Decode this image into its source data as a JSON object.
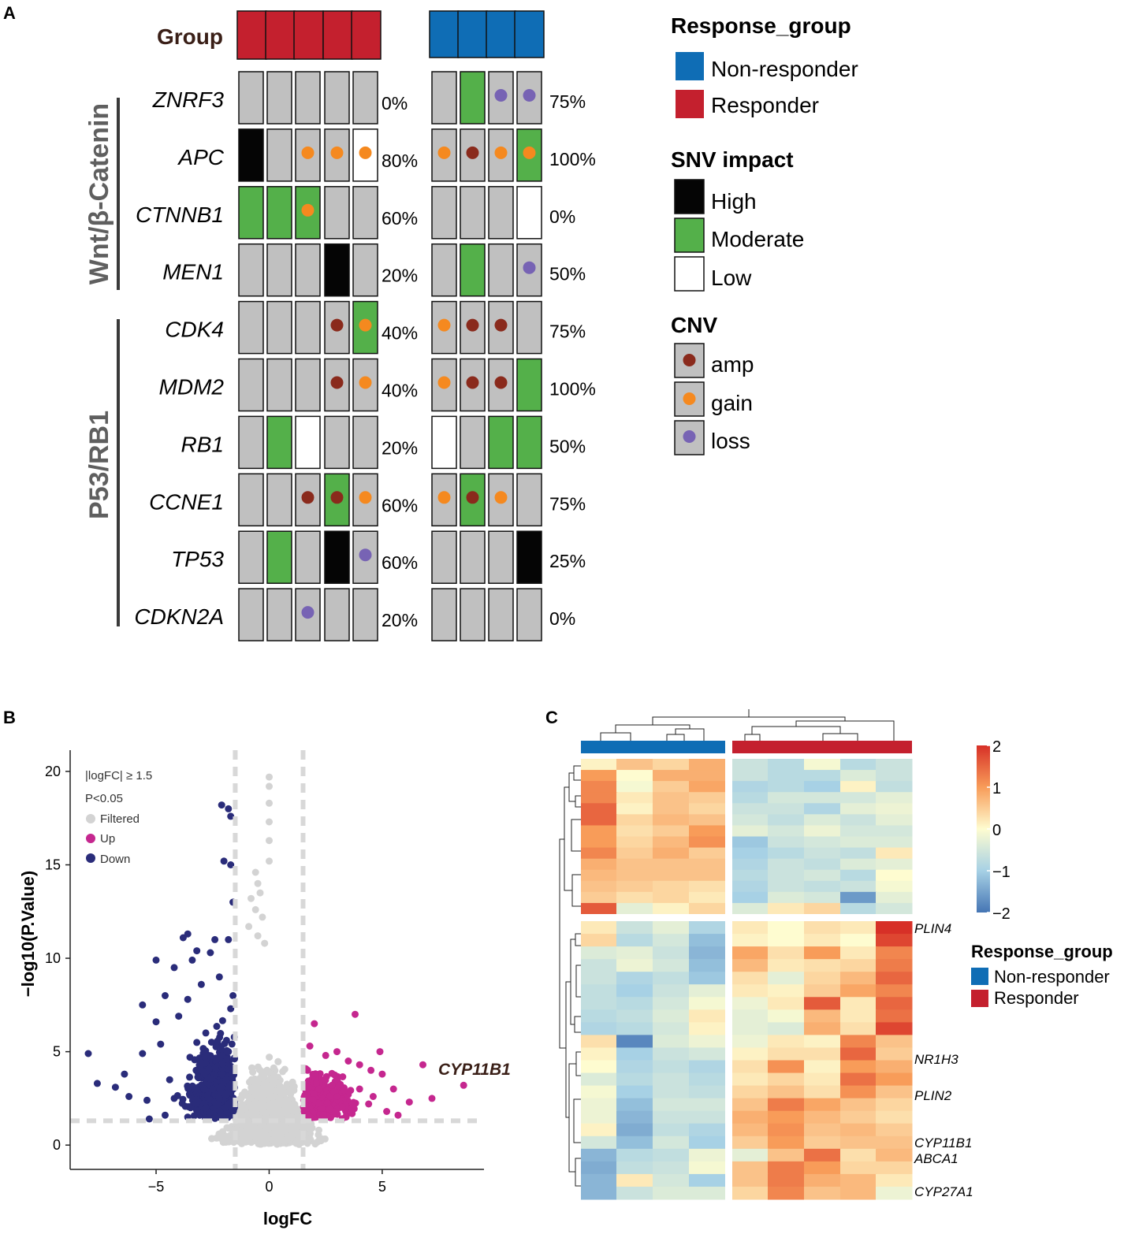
{
  "colors": {
    "responder": "#c4202e",
    "non_responder": "#0f6db5",
    "high": "#050505",
    "moderate": "#54b04a",
    "low": "#ffffff",
    "none": "#c0c0c0",
    "amp": "#8a2a1c",
    "gain": "#f5891f",
    "loss": "#7763b4",
    "up": "#c5278f",
    "down": "#2a2c7a",
    "filtered": "#d3d3d3"
  },
  "panel_a": {
    "label": "A",
    "group_label": "Group",
    "pathways": [
      {
        "name": "Wnt/β-Catenin",
        "genes": [
          "ZNRF3",
          "APC",
          "CTNNB1",
          "MEN1"
        ]
      },
      {
        "name": "P53/RB1",
        "genes": [
          "CDK4",
          "MDM2",
          "RB1",
          "CCNE1",
          "TP53",
          "CDKN2A"
        ]
      }
    ],
    "genes": [
      {
        "name": "ZNRF3",
        "resp_pct": "0%",
        "nonresp_pct": "75%",
        "resp": [
          [
            "N",
            ""
          ],
          [
            "N",
            ""
          ],
          [
            "N",
            ""
          ],
          [
            "N",
            ""
          ],
          [
            "N",
            ""
          ]
        ],
        "nonresp": [
          [
            "N",
            ""
          ],
          [
            "M",
            ""
          ],
          [
            "N",
            "loss"
          ],
          [
            "N",
            "loss"
          ]
        ]
      },
      {
        "name": "APC",
        "resp_pct": "80%",
        "nonresp_pct": "100%",
        "resp": [
          [
            "H",
            ""
          ],
          [
            "N",
            ""
          ],
          [
            "N",
            "gain"
          ],
          [
            "N",
            "gain"
          ],
          [
            "L",
            "gain"
          ]
        ],
        "nonresp": [
          [
            "N",
            "gain"
          ],
          [
            "N",
            "amp"
          ],
          [
            "N",
            "gain"
          ],
          [
            "M",
            "gain"
          ]
        ]
      },
      {
        "name": "CTNNB1",
        "resp_pct": "60%",
        "nonresp_pct": "0%",
        "resp": [
          [
            "M",
            ""
          ],
          [
            "M",
            ""
          ],
          [
            "M",
            "gain"
          ],
          [
            "N",
            ""
          ],
          [
            "N",
            ""
          ]
        ],
        "nonresp": [
          [
            "N",
            ""
          ],
          [
            "N",
            ""
          ],
          [
            "N",
            ""
          ],
          [
            "L",
            ""
          ]
        ]
      },
      {
        "name": "MEN1",
        "resp_pct": "20%",
        "nonresp_pct": "50%",
        "resp": [
          [
            "N",
            ""
          ],
          [
            "N",
            ""
          ],
          [
            "N",
            ""
          ],
          [
            "H",
            ""
          ],
          [
            "N",
            ""
          ]
        ],
        "nonresp": [
          [
            "N",
            ""
          ],
          [
            "M",
            ""
          ],
          [
            "N",
            ""
          ],
          [
            "N",
            "loss"
          ]
        ]
      },
      {
        "name": "CDK4",
        "resp_pct": "40%",
        "nonresp_pct": "75%",
        "resp": [
          [
            "N",
            ""
          ],
          [
            "N",
            ""
          ],
          [
            "N",
            ""
          ],
          [
            "N",
            "amp"
          ],
          [
            "M",
            "gain"
          ]
        ],
        "nonresp": [
          [
            "N",
            "gain"
          ],
          [
            "N",
            "amp"
          ],
          [
            "N",
            "amp"
          ],
          [
            "N",
            ""
          ]
        ]
      },
      {
        "name": "MDM2",
        "resp_pct": "40%",
        "nonresp_pct": "100%",
        "resp": [
          [
            "N",
            ""
          ],
          [
            "N",
            ""
          ],
          [
            "N",
            ""
          ],
          [
            "N",
            "amp"
          ],
          [
            "N",
            "gain"
          ]
        ],
        "nonresp": [
          [
            "N",
            "gain"
          ],
          [
            "N",
            "amp"
          ],
          [
            "N",
            "amp"
          ],
          [
            "M",
            ""
          ]
        ]
      },
      {
        "name": "RB1",
        "resp_pct": "20%",
        "nonresp_pct": "50%",
        "resp": [
          [
            "N",
            ""
          ],
          [
            "M",
            ""
          ],
          [
            "L",
            ""
          ],
          [
            "N",
            ""
          ],
          [
            "N",
            ""
          ]
        ],
        "nonresp": [
          [
            "L",
            ""
          ],
          [
            "N",
            ""
          ],
          [
            "M",
            ""
          ],
          [
            "M",
            ""
          ]
        ]
      },
      {
        "name": "CCNE1",
        "resp_pct": "60%",
        "nonresp_pct": "75%",
        "resp": [
          [
            "N",
            ""
          ],
          [
            "N",
            ""
          ],
          [
            "N",
            "amp"
          ],
          [
            "M",
            "amp"
          ],
          [
            "N",
            "gain"
          ]
        ],
        "nonresp": [
          [
            "N",
            "gain"
          ],
          [
            "M",
            "amp"
          ],
          [
            "N",
            "gain"
          ],
          [
            "N",
            ""
          ]
        ]
      },
      {
        "name": "TP53",
        "resp_pct": "60%",
        "nonresp_pct": "25%",
        "resp": [
          [
            "N",
            ""
          ],
          [
            "M",
            ""
          ],
          [
            "N",
            ""
          ],
          [
            "H",
            ""
          ],
          [
            "N",
            "loss"
          ]
        ],
        "nonresp": [
          [
            "N",
            ""
          ],
          [
            "N",
            ""
          ],
          [
            "N",
            ""
          ],
          [
            "H",
            ""
          ]
        ]
      },
      {
        "name": "CDKN2A",
        "resp_pct": "20%",
        "nonresp_pct": "0%",
        "resp": [
          [
            "N",
            ""
          ],
          [
            "N",
            ""
          ],
          [
            "N",
            "loss"
          ],
          [
            "N",
            ""
          ],
          [
            "N",
            ""
          ]
        ],
        "nonresp": [
          [
            "N",
            ""
          ],
          [
            "N",
            ""
          ],
          [
            "N",
            ""
          ],
          [
            "N",
            ""
          ]
        ]
      }
    ],
    "legend": {
      "response_title": "Response_group",
      "response_items": [
        "Non-responder",
        "Responder"
      ],
      "snv_title": "SNV impact",
      "snv_items": [
        "High",
        "Moderate",
        "Low"
      ],
      "cnv_title": "CNV",
      "cnv_items": [
        "amp",
        "gain",
        "loss"
      ]
    }
  },
  "panel_b": {
    "label": "B",
    "chart_data": {
      "type": "scatter",
      "title": "",
      "xlabel": "logFC",
      "ylabel": "−log10(P.Value)",
      "xlim": [
        -8.8,
        9.5
      ],
      "ylim": [
        -1.3,
        20.8
      ],
      "xticks": [
        -5,
        0,
        5
      ],
      "xtick_labels": [
        "−5",
        "0",
        "5"
      ],
      "yticks": [
        0,
        5,
        10,
        15,
        20
      ],
      "ytick_labels": [
        "0",
        "5",
        "10",
        "15",
        "20"
      ],
      "thresholds": {
        "logfc": 1.5,
        "neg_log10_p": 1.3
      },
      "legend_lines": [
        "|logFC| ≥ 1.5",
        "P<0.05"
      ],
      "legend_items": [
        "Filtered",
        "Up",
        "Down"
      ],
      "annotation": {
        "text": "CYP11B1",
        "x": 8.6,
        "y": 3.2
      },
      "series": [
        {
          "name": "Down",
          "points": [
            [
              -8,
              4.9
            ],
            [
              -7.6,
              3.3
            ],
            [
              -6.8,
              3.1
            ],
            [
              -6.4,
              3.8
            ],
            [
              -6.2,
              2.6
            ],
            [
              -5.6,
              7.5
            ],
            [
              -5.6,
              4.9
            ],
            [
              -5.4,
              2.4
            ],
            [
              -5.0,
              9.9
            ],
            [
              -5.0,
              6.6
            ],
            [
              -4.8,
              5.4
            ],
            [
              -4.6,
              8.0
            ],
            [
              -4.4,
              3.5
            ],
            [
              -4.2,
              9.5
            ],
            [
              -4.0,
              6.9
            ],
            [
              -3.8,
              11.1
            ],
            [
              -3.6,
              11.3
            ],
            [
              -3.6,
              7.8
            ],
            [
              -3.4,
              9.9
            ],
            [
              -3.2,
              10.4
            ],
            [
              -3.0,
              8.6
            ],
            [
              -2.8,
              6.0
            ],
            [
              -2.6,
              10.3
            ],
            [
              -2.4,
              11.0
            ],
            [
              -2.2,
              9.0
            ],
            [
              -2.1,
              18.2
            ],
            [
              -1.8,
              18.0
            ],
            [
              -1.7,
              17.6
            ],
            [
              -2.0,
              15.2
            ],
            [
              -1.8,
              11.0
            ],
            [
              -1.7,
              7.3
            ],
            [
              -3.0,
              4.0
            ],
            [
              -2.5,
              3.0
            ],
            [
              -4.2,
              2.5
            ],
            [
              -5.3,
              1.4
            ],
            [
              -4.6,
              1.6
            ],
            [
              -3.6,
              1.5
            ],
            [
              -2.8,
              2.0
            ],
            [
              -2.2,
              2.5
            ],
            [
              -1.9,
              3.5
            ],
            [
              -1.8,
              5.0
            ],
            [
              -1.6,
              8.0
            ],
            [
              -1.6,
              13.0
            ],
            [
              -1.7,
              15.0
            ]
          ]
        },
        {
          "name": "Up",
          "points": [
            [
              3.8,
              7.0
            ],
            [
              2.0,
              6.5
            ],
            [
              1.8,
              5.3
            ],
            [
              2.5,
              4.8
            ],
            [
              3.0,
              5.0
            ],
            [
              3.5,
              4.5
            ],
            [
              4.0,
              4.3
            ],
            [
              4.5,
              4.0
            ],
            [
              4.9,
              5.0
            ],
            [
              5.0,
              3.8
            ],
            [
              5.5,
              3.0
            ],
            [
              6.2,
              2.3
            ],
            [
              6.8,
              4.3
            ],
            [
              7.2,
              2.5
            ],
            [
              8.6,
              3.2
            ],
            [
              5.7,
              1.6
            ],
            [
              5.2,
              1.8
            ],
            [
              4.4,
              2.2
            ],
            [
              3.0,
              2.6
            ],
            [
              2.2,
              3.0
            ],
            [
              1.7,
              2.0
            ],
            [
              1.7,
              4.0
            ],
            [
              2.4,
              1.6
            ],
            [
              3.4,
              1.5
            ],
            [
              4.0,
              3.0
            ],
            [
              4.6,
              2.6
            ]
          ]
        }
      ]
    }
  },
  "panel_c": {
    "label": "C",
    "colorbar_ticks": [
      "2",
      "1",
      "0",
      "−1",
      "−2"
    ],
    "colorbar_values": [
      2,
      1,
      0,
      -1,
      -2
    ],
    "gene_labels": [
      "PLIN4",
      "NR1H3",
      "PLIN2",
      "CYP11B1",
      "ABCA1",
      "CYP27A1"
    ],
    "legend_title": "Response_group",
    "legend_items": [
      "Non-responder",
      "Responder"
    ],
    "heatmap_top": [
      [
        0.1,
        0.6,
        0.4,
        0.8,
        -0.6,
        -0.8,
        -0.1,
        -0.8,
        -0.6
      ],
      [
        1.0,
        0.0,
        0.8,
        0.8,
        -0.6,
        -0.8,
        -0.8,
        -0.4,
        -0.6
      ],
      [
        1.2,
        -0.1,
        0.5,
        0.9,
        -0.9,
        -0.8,
        -1.0,
        0.1,
        -0.7
      ],
      [
        1.2,
        0.2,
        0.6,
        0.5,
        -0.8,
        -0.5,
        -0.5,
        -0.5,
        -0.3
      ],
      [
        1.5,
        0.1,
        0.6,
        0.4,
        -0.6,
        -0.6,
        -0.9,
        -0.3,
        -0.2
      ],
      [
        1.5,
        0.4,
        0.7,
        0.6,
        -0.5,
        -0.7,
        -0.4,
        -0.6,
        -0.3
      ],
      [
        1.0,
        0.3,
        0.5,
        1.0,
        -0.3,
        -0.5,
        -0.2,
        -0.5,
        -0.5
      ],
      [
        1.0,
        0.4,
        0.7,
        1.1,
        -1.1,
        -0.6,
        -0.5,
        -0.4,
        -0.4
      ],
      [
        1.2,
        0.5,
        0.8,
        0.5,
        -1.0,
        -0.8,
        -0.6,
        -0.7,
        0.2
      ],
      [
        0.8,
        0.6,
        0.6,
        0.6,
        -0.9,
        -0.6,
        -0.7,
        -0.4,
        -0.3
      ],
      [
        0.7,
        0.6,
        0.6,
        0.6,
        -0.8,
        -0.6,
        -0.5,
        -0.8,
        0.0
      ],
      [
        0.6,
        0.5,
        0.4,
        0.3,
        -0.9,
        -0.6,
        -0.7,
        -0.6,
        -0.1
      ],
      [
        0.5,
        0.3,
        0.4,
        0.2,
        -1.0,
        -0.4,
        -0.5,
        -1.6,
        -0.3
      ],
      [
        1.6,
        -0.3,
        0.1,
        0.4,
        -0.4,
        0.2,
        0.4,
        -0.8,
        -0.5
      ]
    ],
    "heatmap_bottom": [
      [
        0.2,
        -0.6,
        -0.3,
        -0.9,
        0.2,
        0.0,
        0.3,
        0.2,
        2.0
      ],
      [
        0.4,
        -0.8,
        -0.5,
        -1.2,
        0.1,
        0.0,
        0.2,
        0.0,
        1.8
      ],
      [
        -0.4,
        -0.3,
        -0.6,
        -1.3,
        0.9,
        0.3,
        1.0,
        0.2,
        1.2
      ],
      [
        -0.6,
        -0.2,
        -0.5,
        -1.2,
        0.7,
        0.2,
        0.3,
        0.4,
        1.3
      ],
      [
        -0.6,
        -0.9,
        -0.7,
        -1.1,
        0.3,
        -0.3,
        0.4,
        0.7,
        1.5
      ],
      [
        -0.7,
        -1.0,
        -0.6,
        -0.3,
        0.2,
        0.1,
        0.5,
        0.9,
        1.2
      ],
      [
        -0.7,
        -0.8,
        -0.5,
        -0.1,
        -0.2,
        0.2,
        1.6,
        0.2,
        1.5
      ],
      [
        -0.8,
        -0.7,
        -0.4,
        0.2,
        -0.3,
        -0.1,
        0.7,
        0.2,
        1.4
      ],
      [
        -0.9,
        -0.8,
        -0.5,
        0.1,
        -0.3,
        -0.4,
        0.8,
        0.3,
        1.8
      ],
      [
        0.3,
        -1.8,
        -0.4,
        -0.2,
        -0.2,
        0.2,
        0.1,
        1.2,
        0.6
      ],
      [
        0.1,
        -1.0,
        -0.6,
        -0.5,
        0.1,
        0.3,
        0.3,
        1.5,
        0.5
      ],
      [
        0.0,
        -0.9,
        -0.7,
        -0.9,
        0.3,
        1.1,
        0.1,
        1.0,
        0.8
      ],
      [
        -0.4,
        -0.8,
        -0.6,
        -0.8,
        0.2,
        0.4,
        0.2,
        1.4,
        1.0
      ],
      [
        -0.1,
        -1.0,
        -0.6,
        -0.7,
        0.4,
        0.6,
        0.3,
        1.1,
        0.6
      ],
      [
        -0.2,
        -1.2,
        -0.5,
        -0.5,
        0.6,
        1.3,
        0.9,
        0.6,
        0.4
      ],
      [
        -0.2,
        -1.3,
        -0.6,
        -0.6,
        0.8,
        1.0,
        0.7,
        0.5,
        0.3
      ],
      [
        0.1,
        -1.4,
        -0.7,
        -0.9,
        0.7,
        1.1,
        0.6,
        0.7,
        0.5
      ],
      [
        -0.5,
        -1.2,
        -0.5,
        -1.0,
        0.5,
        1.0,
        0.5,
        0.6,
        0.6
      ],
      [
        -1.3,
        -0.8,
        -0.7,
        -0.2,
        -0.3,
        0.6,
        1.4,
        0.3,
        0.7
      ],
      [
        -1.4,
        -0.7,
        -0.6,
        -0.1,
        0.6,
        1.3,
        1.0,
        0.4,
        0.4
      ],
      [
        -1.3,
        0.2,
        -0.5,
        -1.0,
        0.6,
        1.3,
        0.8,
        0.7,
        0.2
      ],
      [
        -1.3,
        -0.6,
        -0.4,
        -0.4,
        0.4,
        1.2,
        0.6,
        0.7,
        -0.2
      ]
    ]
  }
}
